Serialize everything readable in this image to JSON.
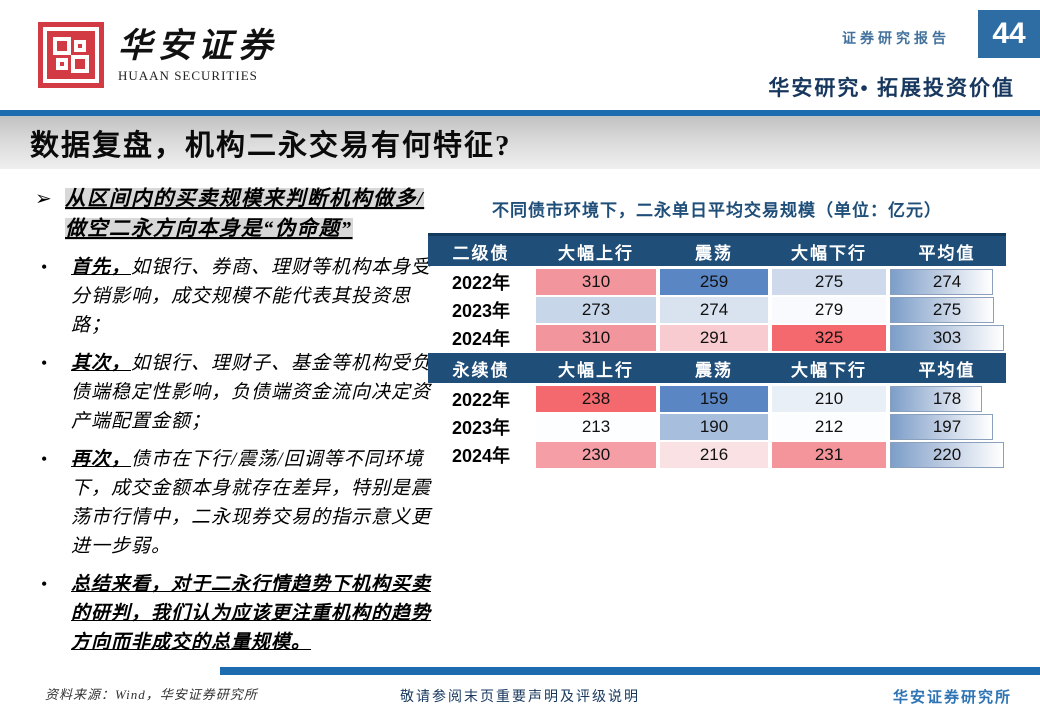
{
  "header": {
    "brand_cn": "华安证券",
    "brand_en": "HUAAN SECURITIES",
    "report_type": "证券研究报告",
    "page_number": "44",
    "slogan": "华安研究• 拓展投资价值"
  },
  "colors": {
    "logo_red": "#D23B44",
    "accent_blue": "#1E6CB0",
    "table_header_navy": "#1F4E79",
    "navy_text": "#17375E",
    "badge_blue": "#2E6DA4",
    "bar_fill": "#7C9EC9"
  },
  "title_bar": {
    "title": "数据复盘，机构二永交易有何特征?"
  },
  "bullets": {
    "lead": {
      "marker": "➢",
      "text": "从区间内的买卖规模来判断机构做多/做空二永方向本身是“伪命题”"
    },
    "marker": "•",
    "items": [
      {
        "lead": "首先，",
        "text": "如银行、券商、理财等机构本身受分销影响，成交规模不能代表其投资思路；"
      },
      {
        "lead": "其次，",
        "text": "如银行、理财子、基金等机构受负债端稳定性影响，负债端资金流向决定资产端配置金额；"
      },
      {
        "lead": "再次，",
        "text": "债市在下行/震荡/回调等不同环境下，成交金额本身就存在差异，特别是震荡市行情中，二永现券交易的指示意义更进一步弱。"
      },
      {
        "lead": "总结来看，",
        "text": "对于二永行情趋势下机构买卖的研判，我们认为应该更注重机构的趋势方向而非成交的总量规模。",
        "emphasis": true
      }
    ]
  },
  "chart_data": {
    "type": "table",
    "title": "不同债市环境下，二永单日平均交易规模（单位：亿元）",
    "unit": "亿元",
    "tables": [
      {
        "name": "二级债",
        "columns": [
          "二级债",
          "大幅上行",
          "震荡",
          "大幅下行",
          "平均值"
        ],
        "rows": [
          {
            "label": "2022年",
            "cells": [
              {
                "v": "310",
                "bg": "#F2959D"
              },
              {
                "v": "259",
                "bg": "#5A86C4"
              },
              {
                "v": "275",
                "bg": "#CEDAEB"
              }
            ],
            "avg": {
              "v": "274",
              "pct": 90
            }
          },
          {
            "label": "2023年",
            "cells": [
              {
                "v": "273",
                "bg": "#C8D6E9"
              },
              {
                "v": "274",
                "bg": "#D9E3F0"
              },
              {
                "v": "279",
                "bg": "#F8FAFD"
              }
            ],
            "avg": {
              "v": "275",
              "pct": 91
            }
          },
          {
            "label": "2024年",
            "cells": [
              {
                "v": "310",
                "bg": "#F2959D"
              },
              {
                "v": "291",
                "bg": "#F7CBD0"
              },
              {
                "v": "325",
                "bg": "#F4696E"
              }
            ],
            "avg": {
              "v": "303",
              "pct": 100
            }
          }
        ]
      },
      {
        "name": "永续债",
        "columns": [
          "永续债",
          "大幅上行",
          "震荡",
          "大幅下行",
          "平均值"
        ],
        "rows": [
          {
            "label": "2022年",
            "cells": [
              {
                "v": "238",
                "bg": "#F4696E"
              },
              {
                "v": "159",
                "bg": "#5A86C4"
              },
              {
                "v": "210",
                "bg": "#E9EFF7"
              }
            ],
            "avg": {
              "v": "178",
              "pct": 81
            }
          },
          {
            "label": "2023年",
            "cells": [
              {
                "v": "213",
                "bg": "#FDFEFF"
              },
              {
                "v": "190",
                "bg": "#A8BEDD"
              },
              {
                "v": "212",
                "bg": "#FCFDFE"
              }
            ],
            "avg": {
              "v": "197",
              "pct": 90
            }
          },
          {
            "label": "2024年",
            "cells": [
              {
                "v": "230",
                "bg": "#F59EA5"
              },
              {
                "v": "216",
                "bg": "#FAE2E4"
              },
              {
                "v": "231",
                "bg": "#F4959C"
              }
            ],
            "avg": {
              "v": "220",
              "pct": 100
            }
          }
        ]
      }
    ]
  },
  "footer": {
    "source": "资料来源：Wind，华安证券研究所",
    "disclaimer": "敬请参阅末页重要声明及评级说明",
    "institute": "华安证券研究所"
  }
}
